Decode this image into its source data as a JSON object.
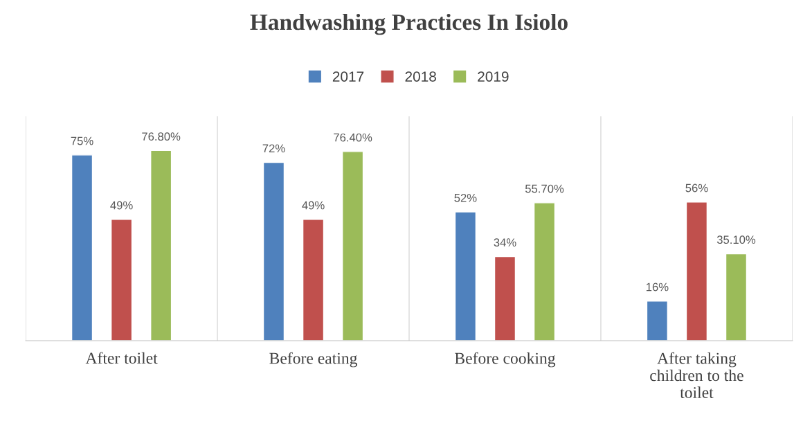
{
  "chart_data": {
    "type": "bar",
    "title": "Handwashing Practices In Isiolo",
    "categories": [
      "After toilet",
      "Before eating",
      "Before cooking",
      "After taking\nchildren to the\ntoilet"
    ],
    "series": [
      {
        "name": "2017",
        "color": "#4f81bd",
        "values": [
          75,
          72,
          52,
          16
        ],
        "value_labels": [
          "75%",
          "72%",
          "52%",
          "16%"
        ]
      },
      {
        "name": "2018",
        "color": "#c0504d",
        "values": [
          49,
          49,
          34,
          56
        ],
        "value_labels": [
          "49%",
          "49%",
          "34%",
          "56%"
        ]
      },
      {
        "name": "2019",
        "color": "#9bbb59",
        "values": [
          76.8,
          76.4,
          55.7,
          35.1
        ],
        "value_labels": [
          "76.80%",
          "76.40%",
          "55.70%",
          "35.10%"
        ]
      }
    ],
    "grid": "x",
    "legend": "top"
  }
}
